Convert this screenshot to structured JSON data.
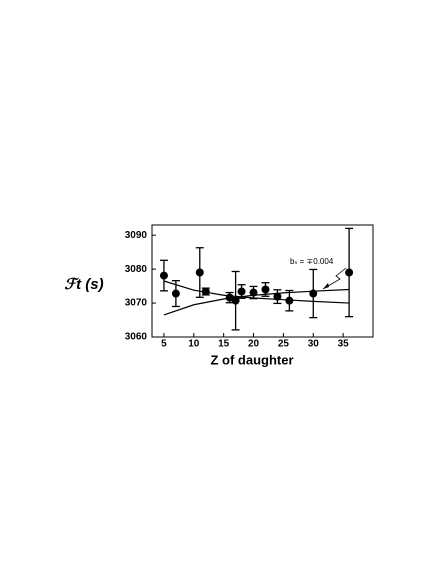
{
  "chart_data": {
    "type": "scatter",
    "x_label": "Z of daughter",
    "y_label": "ℱt (s)",
    "annotation": "bₛ = ∓0.004",
    "xlim": [
      3,
      40
    ],
    "ylim": [
      3060,
      3093
    ],
    "xticks": [
      5,
      10,
      15,
      20,
      25,
      30,
      35
    ],
    "yticks": [
      3060,
      3070,
      3080,
      3090
    ],
    "series": [
      {
        "color": "#000000",
        "x": [
          5,
          7,
          11,
          12,
          16,
          17,
          18,
          20,
          22,
          24,
          26,
          30,
          36
        ],
        "values": [
          3078.1,
          3072.8,
          3079.0,
          3073.4,
          3071.6,
          3070.7,
          3073.4,
          3073.1,
          3074.0,
          3071.9,
          3070.7,
          3072.8,
          3079.0
        ],
        "errors": [
          4.5,
          3.8,
          7.3,
          1.0,
          1.5,
          8.6,
          2.0,
          1.8,
          2.0,
          2.0,
          3.0,
          7.1,
          13.0
        ]
      }
    ],
    "curves": [
      {
        "color": "#000000",
        "x": [
          5,
          10,
          15,
          20,
          25,
          30,
          36
        ],
        "values": [
          3066.5,
          3069.5,
          3071.2,
          3072.3,
          3073.0,
          3073.5,
          3074.0
        ]
      },
      {
        "color": "#000000",
        "x": [
          5,
          10,
          15,
          20,
          25,
          30,
          36
        ],
        "values": [
          3076.5,
          3073.8,
          3072.3,
          3071.5,
          3071.0,
          3070.5,
          3070.0
        ]
      }
    ]
  }
}
